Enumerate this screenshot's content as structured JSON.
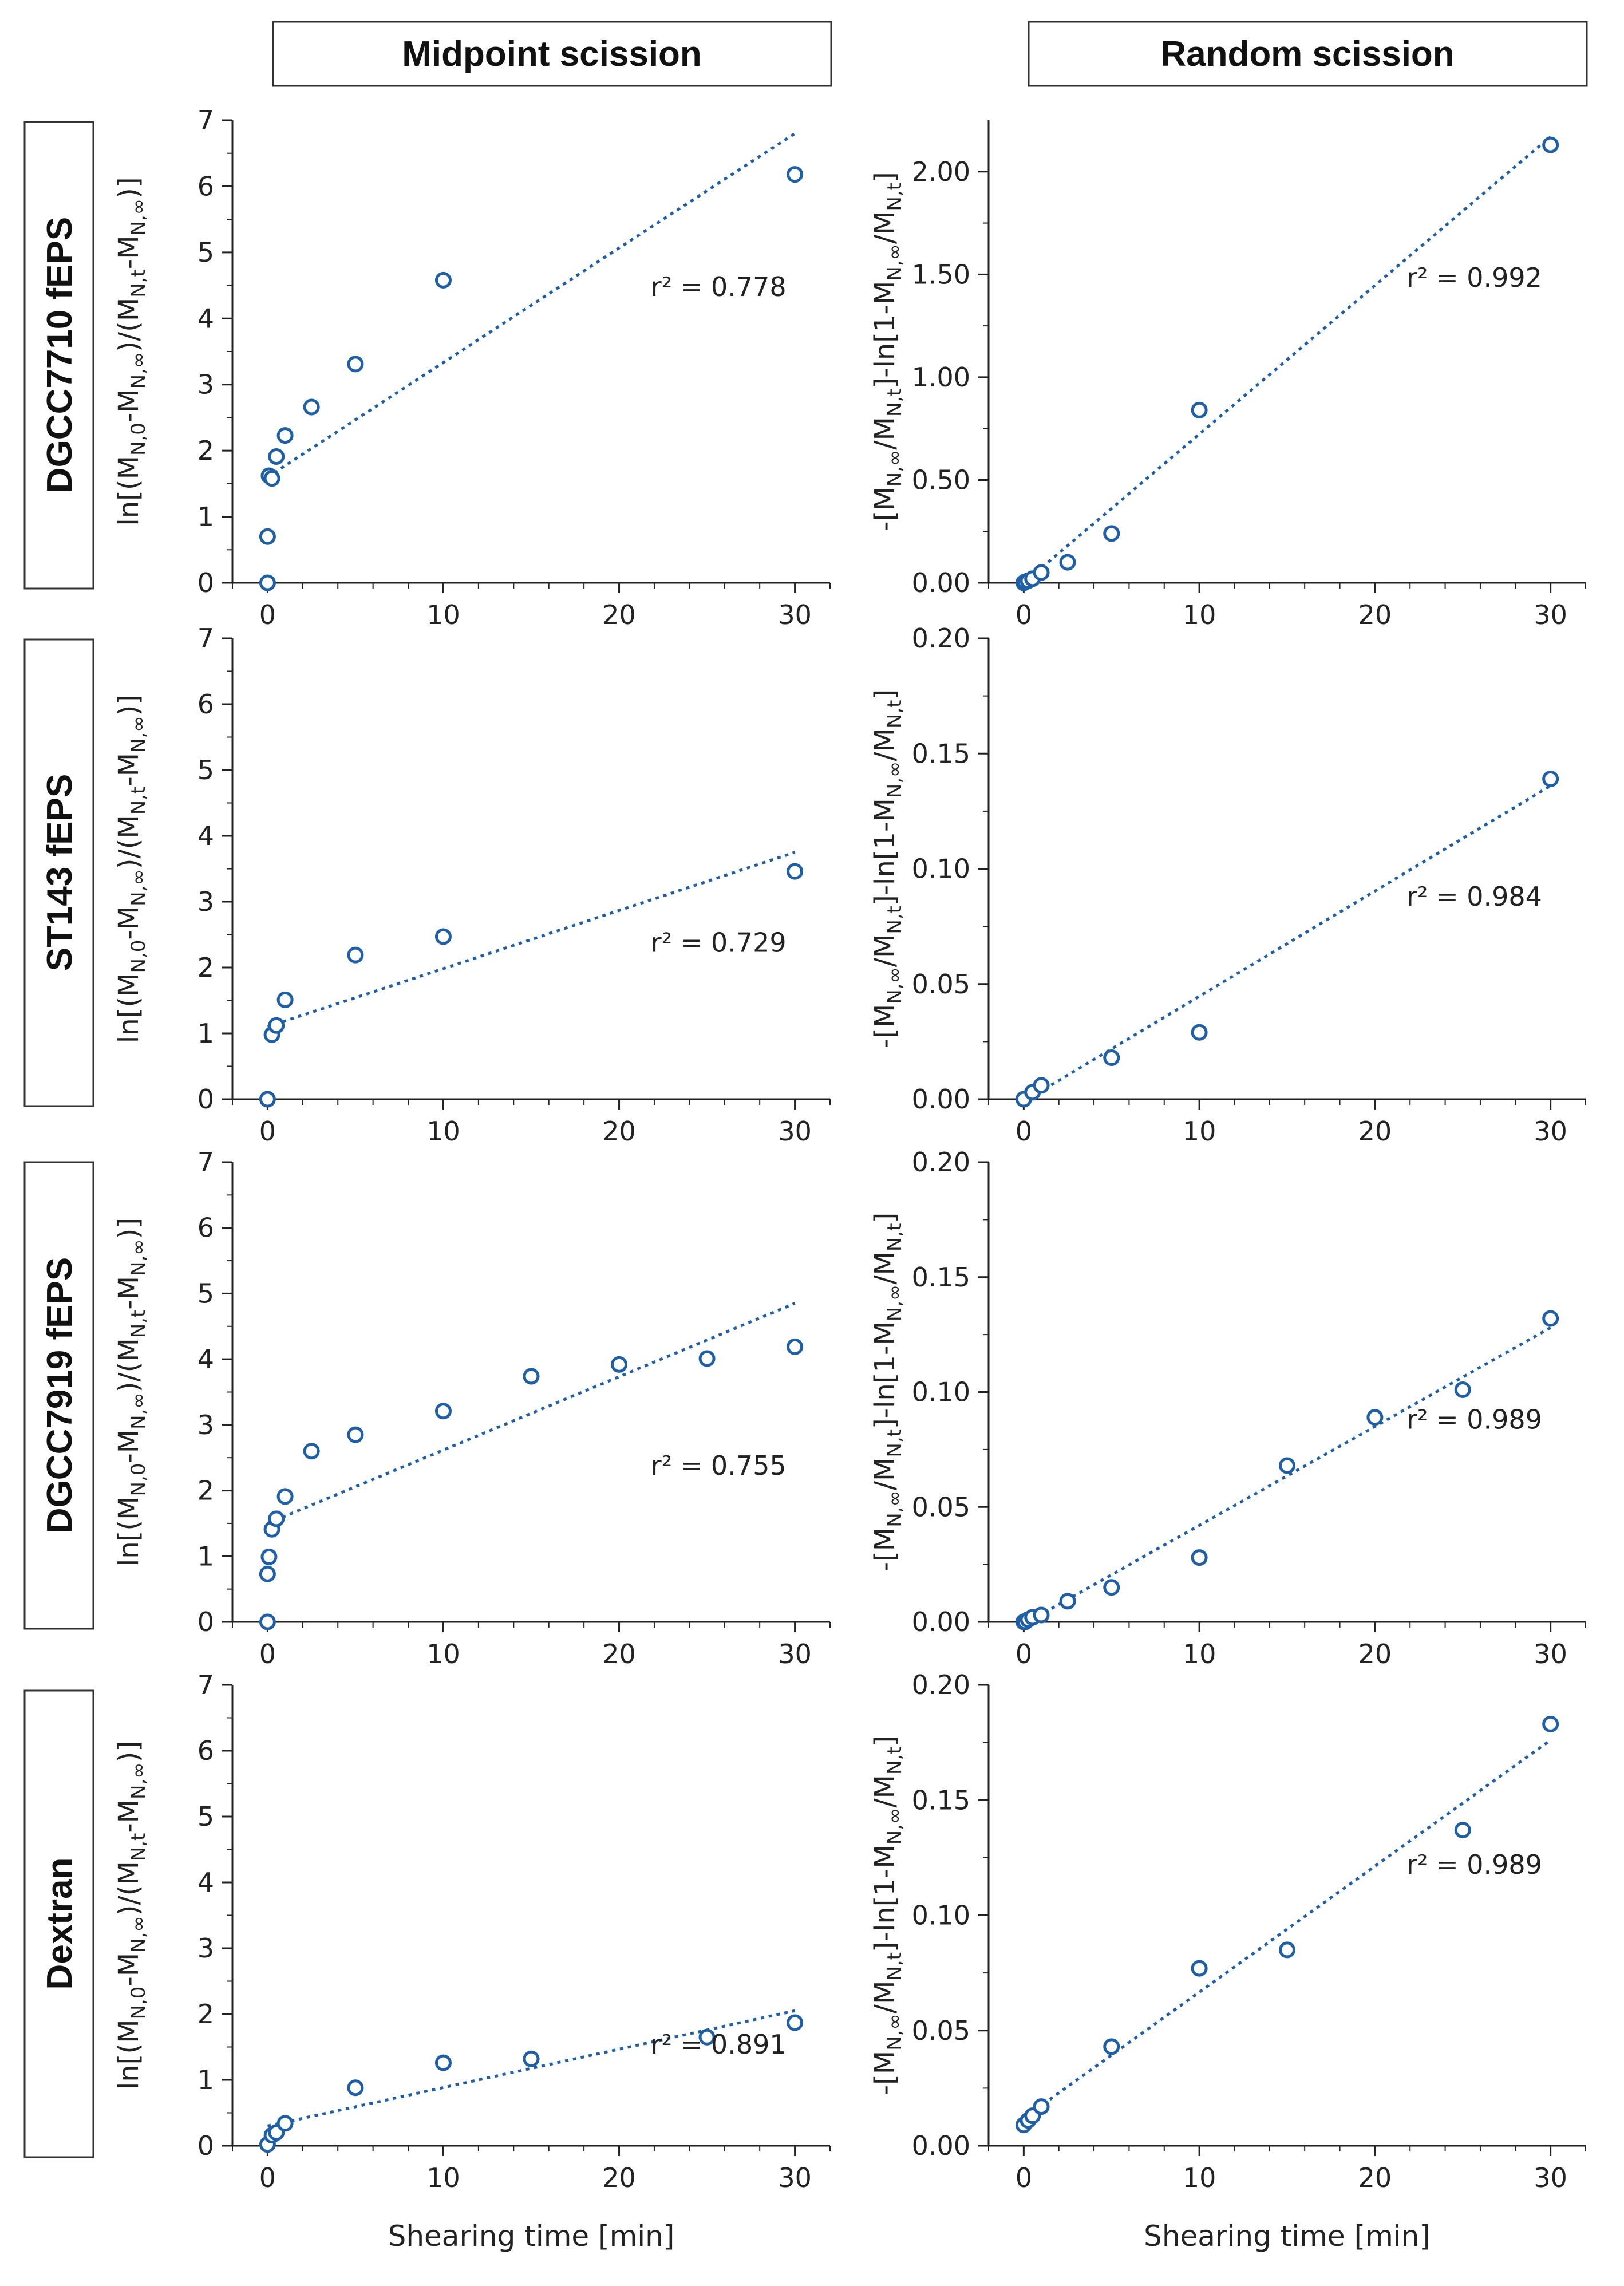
{
  "figure": {
    "column_headers": [
      "Midpoint scission",
      "Random scission"
    ],
    "row_labels": [
      "DGCC7710 fEPS",
      "ST143 fEPS",
      "DGCC7919 fEPS",
      "Dextran"
    ],
    "x_axis_label": "Shearing time [min]",
    "colors": {
      "marker": "#1f5fa6",
      "fit_line": "#1f5fa6",
      "axis": "#222222"
    }
  },
  "chart_data": [
    {
      "id": "DGCC7710-midpoint",
      "type": "scatter",
      "row": 0,
      "col": 0,
      "xlabel": "",
      "ylabel_parts": [
        "ln[(M",
        "N,0",
        "-M",
        "N,∞",
        ")/(M",
        "N,t",
        "-M",
        "N,∞",
        ")]"
      ],
      "xlim": [
        -2,
        32
      ],
      "xticks": [
        0,
        10,
        20,
        30
      ],
      "ylim": [
        0,
        7
      ],
      "yticks": [
        0,
        1,
        2,
        3,
        4,
        5,
        6,
        7
      ],
      "ytick_labels": [
        "0",
        "1",
        "2",
        "3",
        "4",
        "5",
        "6",
        "7"
      ],
      "points": {
        "x": [
          0,
          0,
          0.083,
          0.25,
          0.5,
          1,
          2.5,
          5,
          10,
          30
        ],
        "y": [
          0,
          0.7,
          1.62,
          1.58,
          1.91,
          2.23,
          2.66,
          3.31,
          4.58,
          6.18
        ]
      },
      "fit": {
        "x": [
          0,
          30
        ],
        "y": [
          1.6,
          6.8
        ]
      },
      "annotation": "r² = 0.778"
    },
    {
      "id": "DGCC7710-random",
      "type": "scatter",
      "row": 0,
      "col": 1,
      "xlabel": "",
      "ylabel_parts": [
        "-[M",
        "N,∞",
        "/M",
        "N,t",
        "]-ln[1-M",
        "N,∞",
        "/M",
        "N,t",
        "]"
      ],
      "xlim": [
        -2,
        32
      ],
      "xticks": [
        0,
        10,
        20,
        30
      ],
      "ylim": [
        0,
        2.25
      ],
      "yticks": [
        0,
        0.5,
        1.0,
        1.5,
        2.0
      ],
      "ytick_labels": [
        "0.00",
        "0.50",
        "1.00",
        "1.50",
        "2.00"
      ],
      "points": {
        "x": [
          0,
          0.083,
          0.25,
          0.5,
          1,
          2.5,
          5,
          10,
          30
        ],
        "y": [
          0.0,
          0.005,
          0.01,
          0.02,
          0.05,
          0.1,
          0.24,
          0.84,
          2.13
        ]
      },
      "fit": {
        "x": [
          0,
          30
        ],
        "y": [
          0.0,
          2.17
        ]
      },
      "annotation": "r² = 0.992"
    },
    {
      "id": "ST143-midpoint",
      "type": "scatter",
      "row": 1,
      "col": 0,
      "xlabel": "",
      "ylabel_parts": [
        "ln[(M",
        "N,0",
        "-M",
        "N,∞",
        ")/(M",
        "N,t",
        "-M",
        "N,∞",
        ")]"
      ],
      "xlim": [
        -2,
        32
      ],
      "xticks": [
        0,
        10,
        20,
        30
      ],
      "ylim": [
        0,
        7
      ],
      "yticks": [
        0,
        1,
        2,
        3,
        4,
        5,
        6,
        7
      ],
      "ytick_labels": [
        "0",
        "1",
        "2",
        "3",
        "4",
        "5",
        "6",
        "7"
      ],
      "points": {
        "x": [
          0,
          0.25,
          0.5,
          1,
          5,
          10,
          30
        ],
        "y": [
          0,
          0.98,
          1.12,
          1.51,
          2.19,
          2.47,
          3.46
        ]
      },
      "fit": {
        "x": [
          0,
          30
        ],
        "y": [
          1.1,
          3.75
        ]
      },
      "annotation": "r² = 0.729"
    },
    {
      "id": "ST143-random",
      "type": "scatter",
      "row": 1,
      "col": 1,
      "xlabel": "",
      "ylabel_parts": [
        "-[M",
        "N,∞",
        "/M",
        "N,t",
        "]-ln[1-M",
        "N,∞",
        "/M",
        "N,t",
        "]"
      ],
      "xlim": [
        -2,
        32
      ],
      "xticks": [
        0,
        10,
        20,
        30
      ],
      "ylim": [
        0,
        0.2
      ],
      "yticks": [
        0,
        0.05,
        0.1,
        0.15,
        0.2
      ],
      "ytick_labels": [
        "0.00",
        "0.05",
        "0.10",
        "0.15",
        "0.20"
      ],
      "points": {
        "x": [
          0,
          0.5,
          1,
          5,
          10,
          30
        ],
        "y": [
          0.0,
          0.003,
          0.006,
          0.018,
          0.029,
          0.139
        ]
      },
      "fit": {
        "x": [
          0,
          30
        ],
        "y": [
          -0.001,
          0.136
        ]
      },
      "annotation": "r² = 0.984"
    },
    {
      "id": "DGCC7919-midpoint",
      "type": "scatter",
      "row": 2,
      "col": 0,
      "xlabel": "",
      "ylabel_parts": [
        "ln[(M",
        "N,0",
        "-M",
        "N,∞",
        ")/(M",
        "N,t",
        "-M",
        "N,∞",
        ")]"
      ],
      "xlim": [
        -2,
        32
      ],
      "xticks": [
        0,
        10,
        20,
        30
      ],
      "ylim": [
        0,
        7
      ],
      "yticks": [
        0,
        1,
        2,
        3,
        4,
        5,
        6,
        7
      ],
      "ytick_labels": [
        "0",
        "1",
        "2",
        "3",
        "4",
        "5",
        "6",
        "7"
      ],
      "points": {
        "x": [
          0,
          0,
          0.083,
          0.25,
          0.5,
          1,
          2.5,
          5,
          10,
          15,
          20,
          25,
          30
        ],
        "y": [
          0,
          0.73,
          0.99,
          1.41,
          1.57,
          1.91,
          2.6,
          2.85,
          3.21,
          3.74,
          3.92,
          4.01,
          4.19
        ]
      },
      "fit": {
        "x": [
          0,
          30
        ],
        "y": [
          1.5,
          4.85
        ]
      },
      "annotation": "r² = 0.755"
    },
    {
      "id": "DGCC7919-random",
      "type": "scatter",
      "row": 2,
      "col": 1,
      "xlabel": "",
      "ylabel_parts": [
        "-[M",
        "N,∞",
        "/M",
        "N,t",
        "]-ln[1-M",
        "N,∞",
        "/M",
        "N,t",
        "]"
      ],
      "xlim": [
        -2,
        32
      ],
      "xticks": [
        0,
        10,
        20,
        30
      ],
      "ylim": [
        0,
        0.2
      ],
      "yticks": [
        0,
        0.05,
        0.1,
        0.15,
        0.2
      ],
      "ytick_labels": [
        "0.00",
        "0.05",
        "0.10",
        "0.15",
        "0.20"
      ],
      "points": {
        "x": [
          0,
          0.083,
          0.25,
          0.5,
          1,
          2.5,
          5,
          10,
          15,
          20,
          25,
          30
        ],
        "y": [
          0.0,
          0.0,
          0.001,
          0.002,
          0.003,
          0.009,
          0.015,
          0.028,
          0.068,
          0.089,
          0.101,
          0.132
        ]
      },
      "fit": {
        "x": [
          0,
          30
        ],
        "y": [
          -0.001,
          0.128
        ]
      },
      "annotation": "r² = 0.989"
    },
    {
      "id": "Dextran-midpoint",
      "type": "scatter",
      "row": 3,
      "col": 0,
      "xlabel": "Shearing time [min]",
      "ylabel_parts": [
        "ln[(M",
        "N,0",
        "-M",
        "N,∞",
        ")/(M",
        "N,t",
        "-M",
        "N,∞",
        ")]"
      ],
      "xlim": [
        -2,
        32
      ],
      "xticks": [
        0,
        10,
        20,
        30
      ],
      "ylim": [
        0,
        7
      ],
      "yticks": [
        0,
        1,
        2,
        3,
        4,
        5,
        6,
        7
      ],
      "ytick_labels": [
        "0",
        "1",
        "2",
        "3",
        "4",
        "5",
        "6",
        "7"
      ],
      "points": {
        "x": [
          0,
          0.25,
          0.5,
          1,
          5,
          10,
          15,
          25,
          30
        ],
        "y": [
          0.02,
          0.16,
          0.2,
          0.34,
          0.88,
          1.26,
          1.32,
          1.65,
          1.87
        ]
      },
      "fit": {
        "x": [
          0,
          30
        ],
        "y": [
          0.3,
          2.05
        ]
      },
      "annotation": "r² = 0.891"
    },
    {
      "id": "Dextran-random",
      "type": "scatter",
      "row": 3,
      "col": 1,
      "xlabel": "Shearing time [min]",
      "ylabel_parts": [
        "-[M",
        "N,∞",
        "/M",
        "N,t",
        "]-ln[1-M",
        "N,∞",
        "/M",
        "N,t",
        "]"
      ],
      "xlim": [
        -2,
        32
      ],
      "xticks": [
        0,
        10,
        20,
        30
      ],
      "ylim": [
        0,
        0.2
      ],
      "yticks": [
        0,
        0.05,
        0.1,
        0.15,
        0.2
      ],
      "ytick_labels": [
        "0.00",
        "0.05",
        "0.10",
        "0.15",
        "0.20"
      ],
      "points": {
        "x": [
          0,
          0.25,
          0.5,
          1,
          5,
          10,
          15,
          25,
          30
        ],
        "y": [
          0.009,
          0.011,
          0.013,
          0.017,
          0.043,
          0.077,
          0.085,
          0.137,
          0.183
        ]
      },
      "fit": {
        "x": [
          0,
          30
        ],
        "y": [
          0.012,
          0.176
        ]
      },
      "annotation": "r² = 0.989"
    }
  ]
}
